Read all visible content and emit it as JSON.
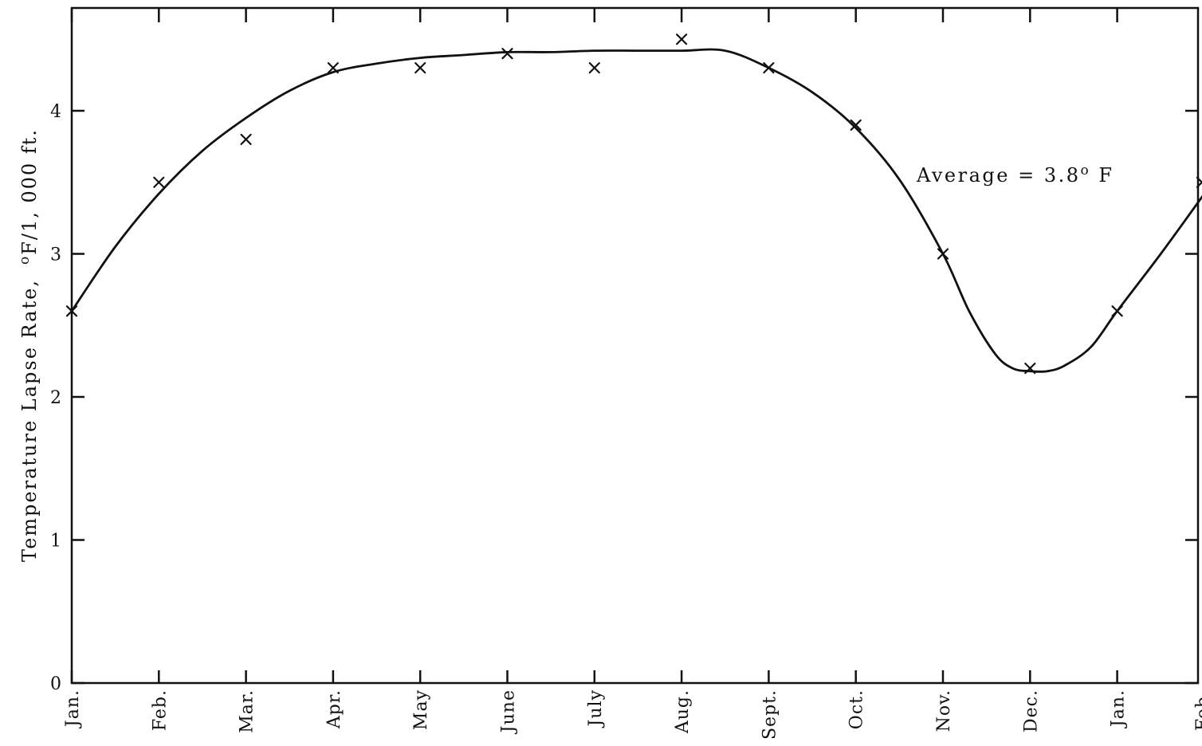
{
  "chart_data": {
    "type": "scatter",
    "xlabel": "",
    "ylabel": "Temperature Lapse Rate,",
    "ylabel_unit_superscript": "o",
    "ylabel_unit": "F/1, 000 ft.",
    "ylim": [
      0,
      4.7
    ],
    "y_ticks": [
      0,
      1,
      2,
      3,
      4
    ],
    "y_tick_labels": [
      "0",
      "1",
      "2",
      "3",
      "4"
    ],
    "categories": [
      "Jan.",
      "Feb.",
      "Mar.",
      "Apr.",
      "May",
      "June",
      "July",
      "Aug.",
      "Sept.",
      "Oct.",
      "Nov.",
      "Dec.",
      "Jan.",
      "Feb."
    ],
    "grid": false,
    "series": [
      {
        "marker": "x",
        "values": [
          2.6,
          3.5,
          3.8,
          4.3,
          4.3,
          4.4,
          4.3,
          4.5,
          4.3,
          3.9,
          3.0,
          2.2,
          2.6,
          3.5
        ]
      }
    ],
    "fitted_curve": {
      "x": [
        0,
        0.5,
        1,
        1.5,
        2,
        2.5,
        3,
        3.5,
        4,
        4.5,
        5,
        5.5,
        6,
        6.5,
        7,
        7.5,
        8,
        8.5,
        9,
        9.5,
        10,
        10.3,
        10.6,
        10.8,
        11,
        11.2,
        11.4,
        11.7,
        12,
        12.5,
        13
      ],
      "y": [
        2.6,
        3.05,
        3.42,
        3.72,
        3.95,
        4.14,
        4.27,
        4.33,
        4.37,
        4.39,
        4.41,
        4.41,
        4.42,
        4.42,
        4.42,
        4.42,
        4.3,
        4.13,
        3.88,
        3.52,
        3.0,
        2.6,
        2.3,
        2.2,
        2.18,
        2.18,
        2.22,
        2.35,
        2.6,
        3.0,
        3.42
      ]
    },
    "annotations": [
      {
        "text": "Average = 3.8",
        "superscript": "o",
        "suffix": " F"
      }
    ]
  }
}
